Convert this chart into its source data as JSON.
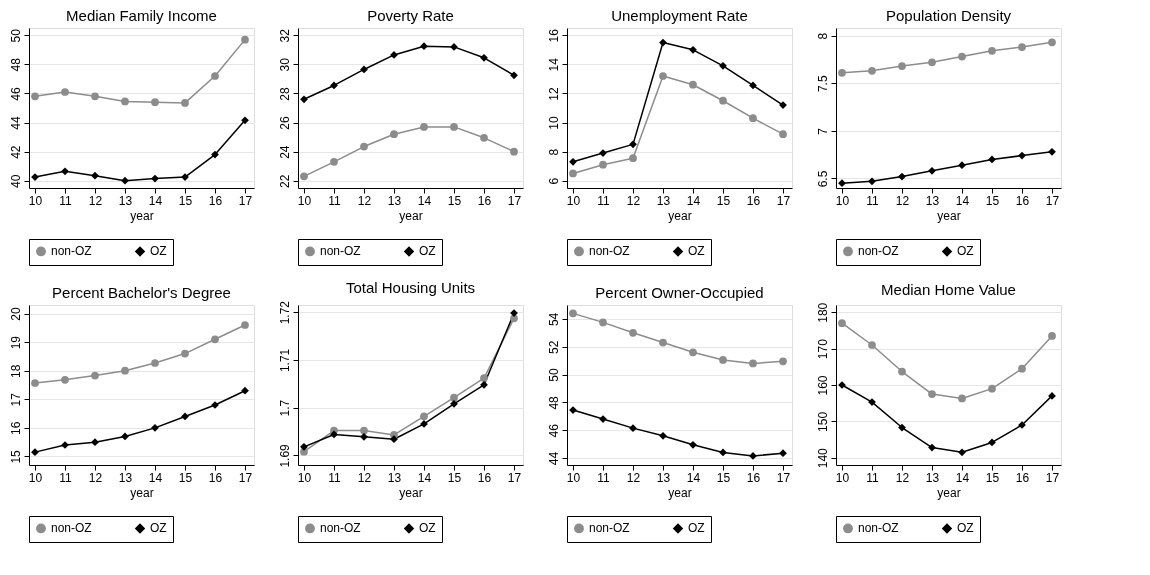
{
  "chart_data": [
    {
      "type": "line",
      "title": "Median Family Income",
      "xlabel": "year",
      "x": [
        10,
        11,
        12,
        13,
        14,
        15,
        16,
        17
      ],
      "xlim": [
        9.8,
        17.3
      ],
      "xticks": [
        10,
        11,
        12,
        13,
        14,
        15,
        16,
        17
      ],
      "ylim": [
        39.5,
        50.5
      ],
      "yticks": [
        40,
        42,
        44,
        46,
        48,
        50
      ],
      "grid": "y",
      "legend": "bottom",
      "series": [
        {
          "name": "non-OZ",
          "color": "#8c8c8c",
          "marker": "circle",
          "values": [
            45.8,
            46.1,
            45.8,
            45.45,
            45.4,
            45.35,
            47.2,
            49.7
          ]
        },
        {
          "name": "OZ",
          "color": "#000000",
          "marker": "diamond",
          "values": [
            40.25,
            40.65,
            40.35,
            40.0,
            40.15,
            40.25,
            41.8,
            44.15
          ]
        }
      ]
    },
    {
      "type": "line",
      "title": "Poverty Rate",
      "xlabel": "year",
      "x": [
        10,
        11,
        12,
        13,
        14,
        15,
        16,
        17
      ],
      "xlim": [
        9.8,
        17.3
      ],
      "xticks": [
        10,
        11,
        12,
        13,
        14,
        15,
        16,
        17
      ],
      "ylim": [
        21.5,
        32.5
      ],
      "yticks": [
        22,
        24,
        26,
        28,
        30,
        32
      ],
      "grid": "y",
      "legend": "bottom",
      "series": [
        {
          "name": "non-OZ",
          "color": "#8c8c8c",
          "marker": "circle",
          "values": [
            22.3,
            23.3,
            24.35,
            25.2,
            25.7,
            25.7,
            24.95,
            24.0
          ]
        },
        {
          "name": "OZ",
          "color": "#000000",
          "marker": "diamond",
          "values": [
            27.6,
            28.55,
            29.65,
            30.65,
            31.25,
            31.2,
            30.45,
            29.25
          ]
        }
      ]
    },
    {
      "type": "line",
      "title": "Unemployment Rate",
      "xlabel": "year",
      "x": [
        10,
        11,
        12,
        13,
        14,
        15,
        16,
        17
      ],
      "xlim": [
        9.8,
        17.3
      ],
      "xticks": [
        10,
        11,
        12,
        13,
        14,
        15,
        16,
        17
      ],
      "ylim": [
        5.5,
        16.5
      ],
      "yticks": [
        6,
        8,
        10,
        12,
        14,
        16
      ],
      "grid": "y",
      "legend": "bottom",
      "series": [
        {
          "name": "non-OZ",
          "color": "#8c8c8c",
          "marker": "circle",
          "values": [
            6.5,
            7.1,
            7.55,
            13.2,
            12.6,
            11.5,
            10.3,
            9.2
          ]
        },
        {
          "name": "OZ",
          "color": "#000000",
          "marker": "diamond",
          "values": [
            7.3,
            7.9,
            8.5,
            15.5,
            15.0,
            13.9,
            12.55,
            11.2
          ]
        }
      ]
    },
    {
      "type": "line",
      "title": "Population Density",
      "xlabel": "year",
      "x": [
        10,
        11,
        12,
        13,
        14,
        15,
        16,
        17
      ],
      "xlim": [
        9.8,
        17.3
      ],
      "xticks": [
        10,
        11,
        12,
        13,
        14,
        15,
        16,
        17
      ],
      "ylim": [
        6.4,
        8.08
      ],
      "yticks": [
        6.5,
        7,
        7.5,
        8
      ],
      "grid": "y",
      "legend": "bottom",
      "series": [
        {
          "name": "non-OZ",
          "color": "#8c8c8c",
          "marker": "circle",
          "values": [
            7.61,
            7.63,
            7.68,
            7.72,
            7.78,
            7.84,
            7.88,
            7.93
          ]
        },
        {
          "name": "OZ",
          "color": "#000000",
          "marker": "diamond",
          "values": [
            6.45,
            6.47,
            6.52,
            6.58,
            6.64,
            6.7,
            6.74,
            6.78
          ]
        }
      ]
    },
    {
      "type": "line",
      "title": "Percent Bachelor's Degree",
      "xlabel": "year",
      "x": [
        10,
        11,
        12,
        13,
        14,
        15,
        16,
        17
      ],
      "xlim": [
        9.8,
        17.3
      ],
      "xticks": [
        10,
        11,
        12,
        13,
        14,
        15,
        16,
        17
      ],
      "ylim": [
        14.7,
        20.3
      ],
      "yticks": [
        15,
        16,
        17,
        18,
        19,
        20
      ],
      "grid": "y",
      "legend": "bottom",
      "series": [
        {
          "name": "non-OZ",
          "color": "#8c8c8c",
          "marker": "circle",
          "values": [
            17.57,
            17.68,
            17.83,
            18.0,
            18.27,
            18.6,
            19.1,
            19.6
          ]
        },
        {
          "name": "OZ",
          "color": "#000000",
          "marker": "diamond",
          "values": [
            15.15,
            15.4,
            15.5,
            15.7,
            16.0,
            16.4,
            16.8,
            17.3
          ]
        }
      ]
    },
    {
      "type": "line",
      "title": "Total Housing Units",
      "xlabel": "year",
      "x": [
        10,
        11,
        12,
        13,
        14,
        15,
        16,
        17
      ],
      "xlim": [
        9.8,
        17.3
      ],
      "xticks": [
        10,
        11,
        12,
        13,
        14,
        15,
        16,
        17
      ],
      "ylim": [
        1.688,
        1.7215
      ],
      "yticks": [
        1.69,
        1.7,
        1.71,
        1.72
      ],
      "grid": "y",
      "legend": "bottom",
      "series": [
        {
          "name": "non-OZ",
          "color": "#8c8c8c",
          "marker": "circle",
          "values": [
            1.6908,
            1.6952,
            1.6952,
            1.6943,
            1.6982,
            1.7021,
            1.7062,
            1.7187
          ]
        },
        {
          "name": "OZ",
          "color": "#000000",
          "marker": "diamond",
          "values": [
            1.6918,
            1.6944,
            1.6939,
            1.6934,
            1.6966,
            1.7008,
            1.7048,
            1.7198
          ]
        }
      ]
    },
    {
      "type": "line",
      "title": "Percent Owner-Occupied",
      "xlabel": "year",
      "x": [
        10,
        11,
        12,
        13,
        14,
        15,
        16,
        17
      ],
      "xlim": [
        9.8,
        17.3
      ],
      "xticks": [
        10,
        11,
        12,
        13,
        14,
        15,
        16,
        17
      ],
      "ylim": [
        43.5,
        55
      ],
      "yticks": [
        44,
        46,
        48,
        50,
        52,
        54
      ],
      "grid": "y",
      "legend": "bottom",
      "series": [
        {
          "name": "non-OZ",
          "color": "#8c8c8c",
          "marker": "circle",
          "values": [
            54.4,
            53.75,
            53.0,
            52.3,
            51.6,
            51.05,
            50.8,
            50.95
          ]
        },
        {
          "name": "OZ",
          "color": "#000000",
          "marker": "diamond",
          "values": [
            47.45,
            46.8,
            46.15,
            45.6,
            44.95,
            44.4,
            44.15,
            44.35
          ]
        }
      ]
    },
    {
      "type": "line",
      "title": "Median Home Value",
      "xlabel": "year",
      "x": [
        10,
        11,
        12,
        13,
        14,
        15,
        16,
        17
      ],
      "xlim": [
        9.8,
        17.3
      ],
      "xticks": [
        10,
        11,
        12,
        13,
        14,
        15,
        16,
        17
      ],
      "ylim": [
        138,
        182
      ],
      "yticks": [
        140,
        150,
        160,
        170,
        180
      ],
      "grid": "y",
      "legend": "bottom",
      "series": [
        {
          "name": "non-OZ",
          "color": "#8c8c8c",
          "marker": "circle",
          "values": [
            177,
            171,
            163.7,
            157.5,
            156.3,
            159,
            164.5,
            173.5
          ]
        },
        {
          "name": "OZ",
          "color": "#000000",
          "marker": "diamond",
          "values": [
            160,
            155.3,
            148.3,
            142.8,
            141.5,
            144.2,
            149,
            157
          ]
        }
      ]
    }
  ]
}
